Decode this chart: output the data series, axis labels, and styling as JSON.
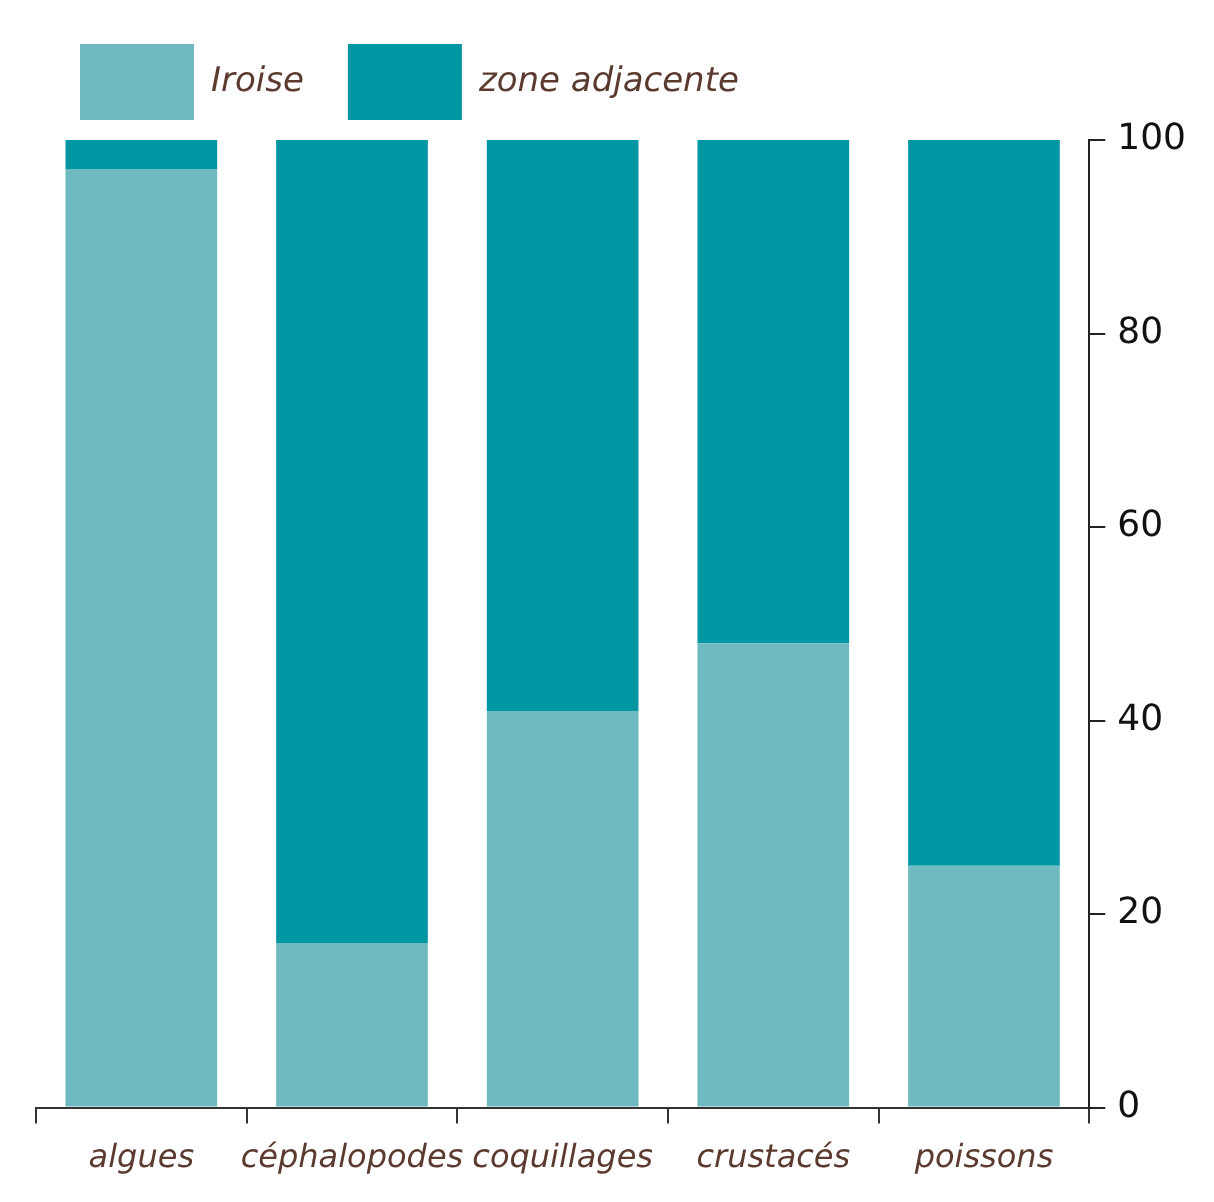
{
  "chart_data": {
    "type": "bar",
    "stacked": true,
    "categories": [
      "algues",
      "céphalopodes",
      "coquillages",
      "crustacés",
      "poissons"
    ],
    "series": [
      {
        "name": "Iroise",
        "color": "#6fbac0",
        "values": [
          97,
          17,
          41,
          48,
          25
        ]
      },
      {
        "name": "zone adjacente",
        "color": "#0097a2",
        "values": [
          3,
          83,
          59,
          52,
          75
        ]
      }
    ],
    "ylim": [
      0,
      100
    ],
    "yticks": [
      0,
      20,
      40,
      60,
      80,
      100
    ],
    "grid": false,
    "legend": "top left"
  }
}
